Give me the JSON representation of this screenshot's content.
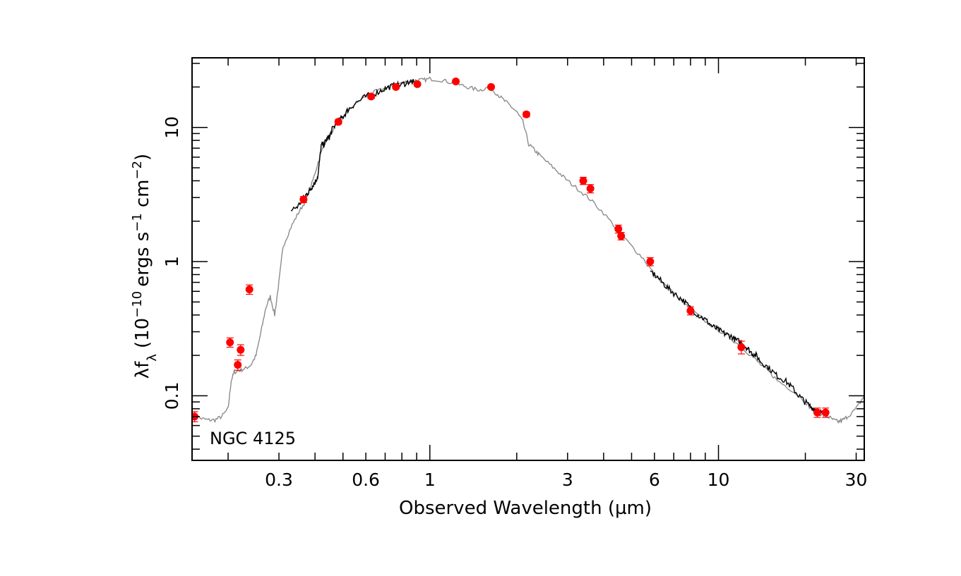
{
  "chart_data": {
    "type": "scatter",
    "title": "",
    "xlabel": "Observed Wavelength (µm)",
    "ylabel_parts": {
      "lambda_f": "λf",
      "lambda_sub": "λ",
      "open": "(10",
      "exp_minus10": "−10",
      "ergs": "ergs s",
      "exp_minus1": "−1",
      "cm": "cm",
      "exp_minus2": "−2",
      "close": ")"
    },
    "xscale": "log",
    "yscale": "log",
    "xlim": [
      0.15,
      32
    ],
    "ylim": [
      0.033,
      33
    ],
    "xticks": [
      {
        "value": 0.3,
        "label": "0.3"
      },
      {
        "value": 0.6,
        "label": "0.6"
      },
      {
        "value": 1,
        "label": "1"
      },
      {
        "value": 3,
        "label": "3"
      },
      {
        "value": 6,
        "label": "6"
      },
      {
        "value": 10,
        "label": "10"
      },
      {
        "value": 30,
        "label": "30"
      }
    ],
    "yticks": [
      {
        "value": 0.1,
        "label": "0.1"
      },
      {
        "value": 1,
        "label": "1"
      },
      {
        "value": 10,
        "label": "10"
      }
    ],
    "annotation": "NGC 4125",
    "colors": {
      "points": "#ff0000",
      "model": "#8c8c8c",
      "observed": "#000000",
      "axes": "#000000"
    },
    "series": [
      {
        "kind": "photometry",
        "x": [
          0.153,
          0.203,
          0.216,
          0.221,
          0.237,
          0.365,
          0.482,
          0.626,
          0.763,
          0.905,
          1.23,
          1.63,
          2.16,
          3.4,
          3.6,
          4.5,
          4.6,
          5.8,
          8.0,
          12.0,
          22.0,
          23.5
        ],
        "y": [
          0.07,
          0.25,
          0.17,
          0.22,
          0.62,
          2.9,
          11.0,
          17.0,
          20.0,
          21.0,
          22.0,
          20.0,
          12.5,
          4.0,
          3.5,
          1.75,
          1.55,
          1.0,
          0.43,
          0.23,
          0.075,
          0.075
        ],
        "yerr": [
          0.006,
          0.02,
          0.015,
          0.02,
          0.05,
          0.15,
          0.4,
          0.6,
          0.6,
          0.6,
          0.6,
          0.6,
          0.5,
          0.25,
          0.25,
          0.12,
          0.1,
          0.07,
          0.03,
          0.025,
          0.006,
          0.006
        ]
      },
      {
        "kind": "model",
        "x": [
          0.15,
          0.16,
          0.17,
          0.18,
          0.19,
          0.2,
          0.205,
          0.21,
          0.22,
          0.23,
          0.24,
          0.25,
          0.26,
          0.27,
          0.28,
          0.29,
          0.3,
          0.31,
          0.33,
          0.35,
          0.37,
          0.39,
          0.41,
          0.43,
          0.46,
          0.5,
          0.55,
          0.6,
          0.65,
          0.7,
          0.75,
          0.8,
          0.85,
          0.9,
          0.95,
          1.0,
          1.1,
          1.2,
          1.3,
          1.4,
          1.5,
          1.6,
          1.7,
          1.8,
          1.9,
          2.0,
          2.1,
          2.2,
          2.3,
          2.4,
          2.6,
          2.8,
          3.0,
          3.3,
          3.6,
          4.0,
          4.5,
          5.0,
          5.5,
          6.0,
          7.0,
          8.0,
          9.0,
          10.0,
          11.0,
          12.0,
          13.0,
          14.0,
          15.0,
          16.0,
          18.0,
          20.0,
          21.0,
          22.0,
          23.0,
          24.0,
          25.0,
          26.0,
          27.0,
          28.0,
          30.0,
          32.0
        ],
        "y": [
          0.075,
          0.068,
          0.066,
          0.066,
          0.07,
          0.08,
          0.13,
          0.15,
          0.155,
          0.16,
          0.17,
          0.2,
          0.3,
          0.45,
          0.55,
          0.4,
          0.7,
          1.3,
          1.8,
          2.3,
          2.8,
          3.8,
          5.5,
          7.5,
          9.5,
          12.0,
          15.0,
          17.0,
          18.5,
          19.5,
          20.5,
          21.5,
          22.0,
          22.5,
          22.5,
          23.0,
          22.5,
          21.5,
          20.5,
          19.5,
          19.0,
          20.0,
          18.0,
          16.0,
          14.5,
          13.0,
          11.0,
          7.5,
          6.8,
          6.2,
          5.3,
          4.6,
          4.0,
          3.4,
          2.9,
          2.3,
          1.7,
          1.3,
          1.05,
          0.8,
          0.58,
          0.44,
          0.36,
          0.31,
          0.27,
          0.23,
          0.2,
          0.17,
          0.15,
          0.13,
          0.11,
          0.09,
          0.08,
          0.075,
          0.072,
          0.07,
          0.066,
          0.064,
          0.066,
          0.07,
          0.08,
          0.1
        ]
      },
      {
        "kind": "observed",
        "x": [
          0.33,
          0.35,
          0.37,
          0.38,
          0.39,
          0.4,
          0.41,
          0.42,
          0.43,
          0.44,
          0.45,
          0.46,
          0.48,
          0.5,
          0.52,
          0.55,
          0.6,
          0.65,
          0.7,
          0.75,
          0.8,
          0.85,
          0.88
        ],
        "y": [
          2.4,
          2.6,
          3.1,
          3.3,
          3.6,
          3.9,
          4.4,
          7.3,
          7.5,
          8.2,
          8.5,
          9.8,
          11.0,
          12.0,
          13.5,
          15.0,
          17.0,
          18.0,
          19.5,
          20.5,
          20.8,
          22.0,
          21.5
        ]
      },
      {
        "kind": "observed",
        "x": [
          5.8,
          6.2,
          6.6,
          7.0,
          7.5,
          8.0,
          8.5,
          9.0,
          9.5,
          10.0,
          10.5,
          11.0,
          11.5,
          12.0,
          12.5,
          13.0,
          13.5,
          14.0,
          15.0,
          16.0,
          17.0,
          18.0,
          19.0,
          20.0,
          21.0,
          22.0,
          23.0,
          24.0
        ],
        "y": [
          0.85,
          0.75,
          0.65,
          0.58,
          0.52,
          0.45,
          0.4,
          0.37,
          0.33,
          0.31,
          0.29,
          0.28,
          0.26,
          0.25,
          0.23,
          0.21,
          0.2,
          0.18,
          0.16,
          0.14,
          0.13,
          0.115,
          0.1,
          0.09,
          0.082,
          0.078,
          0.074,
          0.072
        ]
      }
    ]
  }
}
